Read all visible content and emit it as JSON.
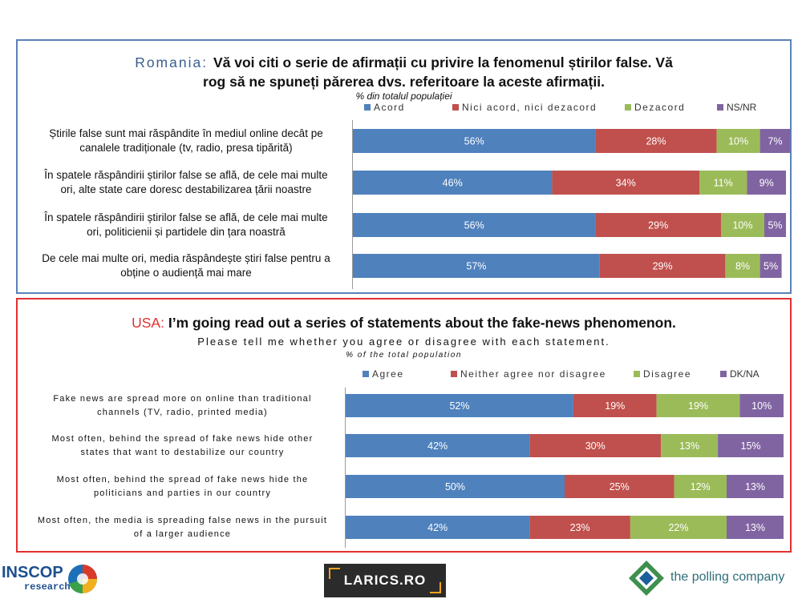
{
  "colors": {
    "blue": "#4f81bd",
    "red": "#c0504d",
    "green": "#9bbb59",
    "purple": "#8064a2",
    "ro_border": "#5a82b8",
    "us_border": "#e23030"
  },
  "ro": {
    "title_lead": "Romania: ",
    "title_line1": "Vă voi citi o serie de afirmații cu privire la fenomenul știrilor false. Vă",
    "title_line2": "rog să ne spuneți părerea dvs. referitoare la aceste afirmații.",
    "subtitle": "% din totalul populației"
  },
  "us": {
    "title_lead": "USA: ",
    "title_line1": "I’m going read out a series of statements about the fake-news phenomenon.",
    "title_line2": "Please tell me whether you agree or disagree with each statement.",
    "subtitle": "% of the total population"
  },
  "chart_data": [
    {
      "type": "bar",
      "stacked": true,
      "orientation": "horizontal",
      "categories": [
        "Știrile false sunt mai răspândite în mediul online decât pe canalele tradiționale (tv, radio, presa tipărită)",
        "În spatele răspândirii știrilor false se află, de cele mai multe ori, alte state care doresc destabilizarea țării noastre",
        "În spatele răspândirii știrilor false se află, de cele mai multe ori, politicienii și partidele din țara noastră",
        "De cele mai multe ori, media răspândește știri false pentru a obține o audiență mai mare"
      ],
      "category_lines": [
        [
          "Știrile false sunt mai răspândite în mediul online decât pe",
          "canalele tradiționale (tv, radio, presa tipărită)"
        ],
        [
          "În spatele răspândirii știrilor false se află, de cele mai multe",
          "ori, alte state care doresc destabilizarea țării noastre"
        ],
        [
          "În spatele răspândirii știrilor false se află, de cele mai multe",
          "ori, politicienii și partidele din țara noastră"
        ],
        [
          "De cele mai multe ori, media răspândește știri false pentru a",
          "obține o audiență mai mare"
        ]
      ],
      "series": [
        {
          "name": "Acord",
          "values": [
            56,
            46,
            56,
            57
          ],
          "labels": [
            "56%",
            "46%",
            "56%",
            "57%"
          ]
        },
        {
          "name": "Nici acord, nici dezacord",
          "values": [
            28,
            34,
            29,
            29
          ],
          "labels": [
            "28%",
            "34%",
            "29%",
            "29%"
          ]
        },
        {
          "name": "Dezacord",
          "values": [
            10,
            11,
            10,
            8
          ],
          "labels": [
            "10%",
            "11%",
            "10%",
            "8%"
          ]
        },
        {
          "name": "NS/NR",
          "values": [
            7,
            9,
            5,
            5
          ],
          "labels": [
            "7%",
            "9%",
            "5%",
            "5%"
          ]
        }
      ],
      "xlim": [
        0,
        100
      ],
      "legend_position": "top"
    },
    {
      "type": "bar",
      "stacked": true,
      "orientation": "horizontal",
      "categories": [
        "Fake news are spread more on online than traditional channels (TV, radio, printed media)",
        "Most often, behind the spread of fake news hide other states that want to destabilize our country",
        "Most often, behind the spread of fake news hide the politicians and parties in our country",
        "Most often, the media is spreading false news in the pursuit of a larger audience"
      ],
      "category_lines": [
        [
          "Fake news are spread more on online than traditional",
          "channels (TV, radio, printed media)"
        ],
        [
          "Most often, behind the spread of fake news hide other",
          "states that want to destabilize our country"
        ],
        [
          "Most often, behind the spread of fake news hide the",
          "politicians and parties in our country"
        ],
        [
          "Most often, the media is spreading false news in the pursuit",
          "of a larger audience"
        ]
      ],
      "series": [
        {
          "name": "Agree",
          "values": [
            52,
            42,
            50,
            42
          ],
          "labels": [
            "52%",
            "42%",
            "50%",
            "42%"
          ]
        },
        {
          "name": "Neither agree nor disagree",
          "values": [
            19,
            30,
            25,
            23
          ],
          "labels": [
            "19%",
            "30%",
            "25%",
            "23%"
          ]
        },
        {
          "name": "Disagree",
          "values": [
            19,
            13,
            12,
            22
          ],
          "labels": [
            "19%",
            "13%",
            "12%",
            "22%"
          ]
        },
        {
          "name": "DK/NA",
          "values": [
            10,
            15,
            13,
            13
          ],
          "labels": [
            "10%",
            "15%",
            "13%",
            "13%"
          ]
        }
      ],
      "xlim": [
        0,
        100
      ],
      "legend_position": "top"
    }
  ],
  "footer": {
    "inscop_line1": "INSCOP",
    "inscop_line2": "research",
    "larics": "LARICS.RO",
    "polling": "the polling company"
  }
}
